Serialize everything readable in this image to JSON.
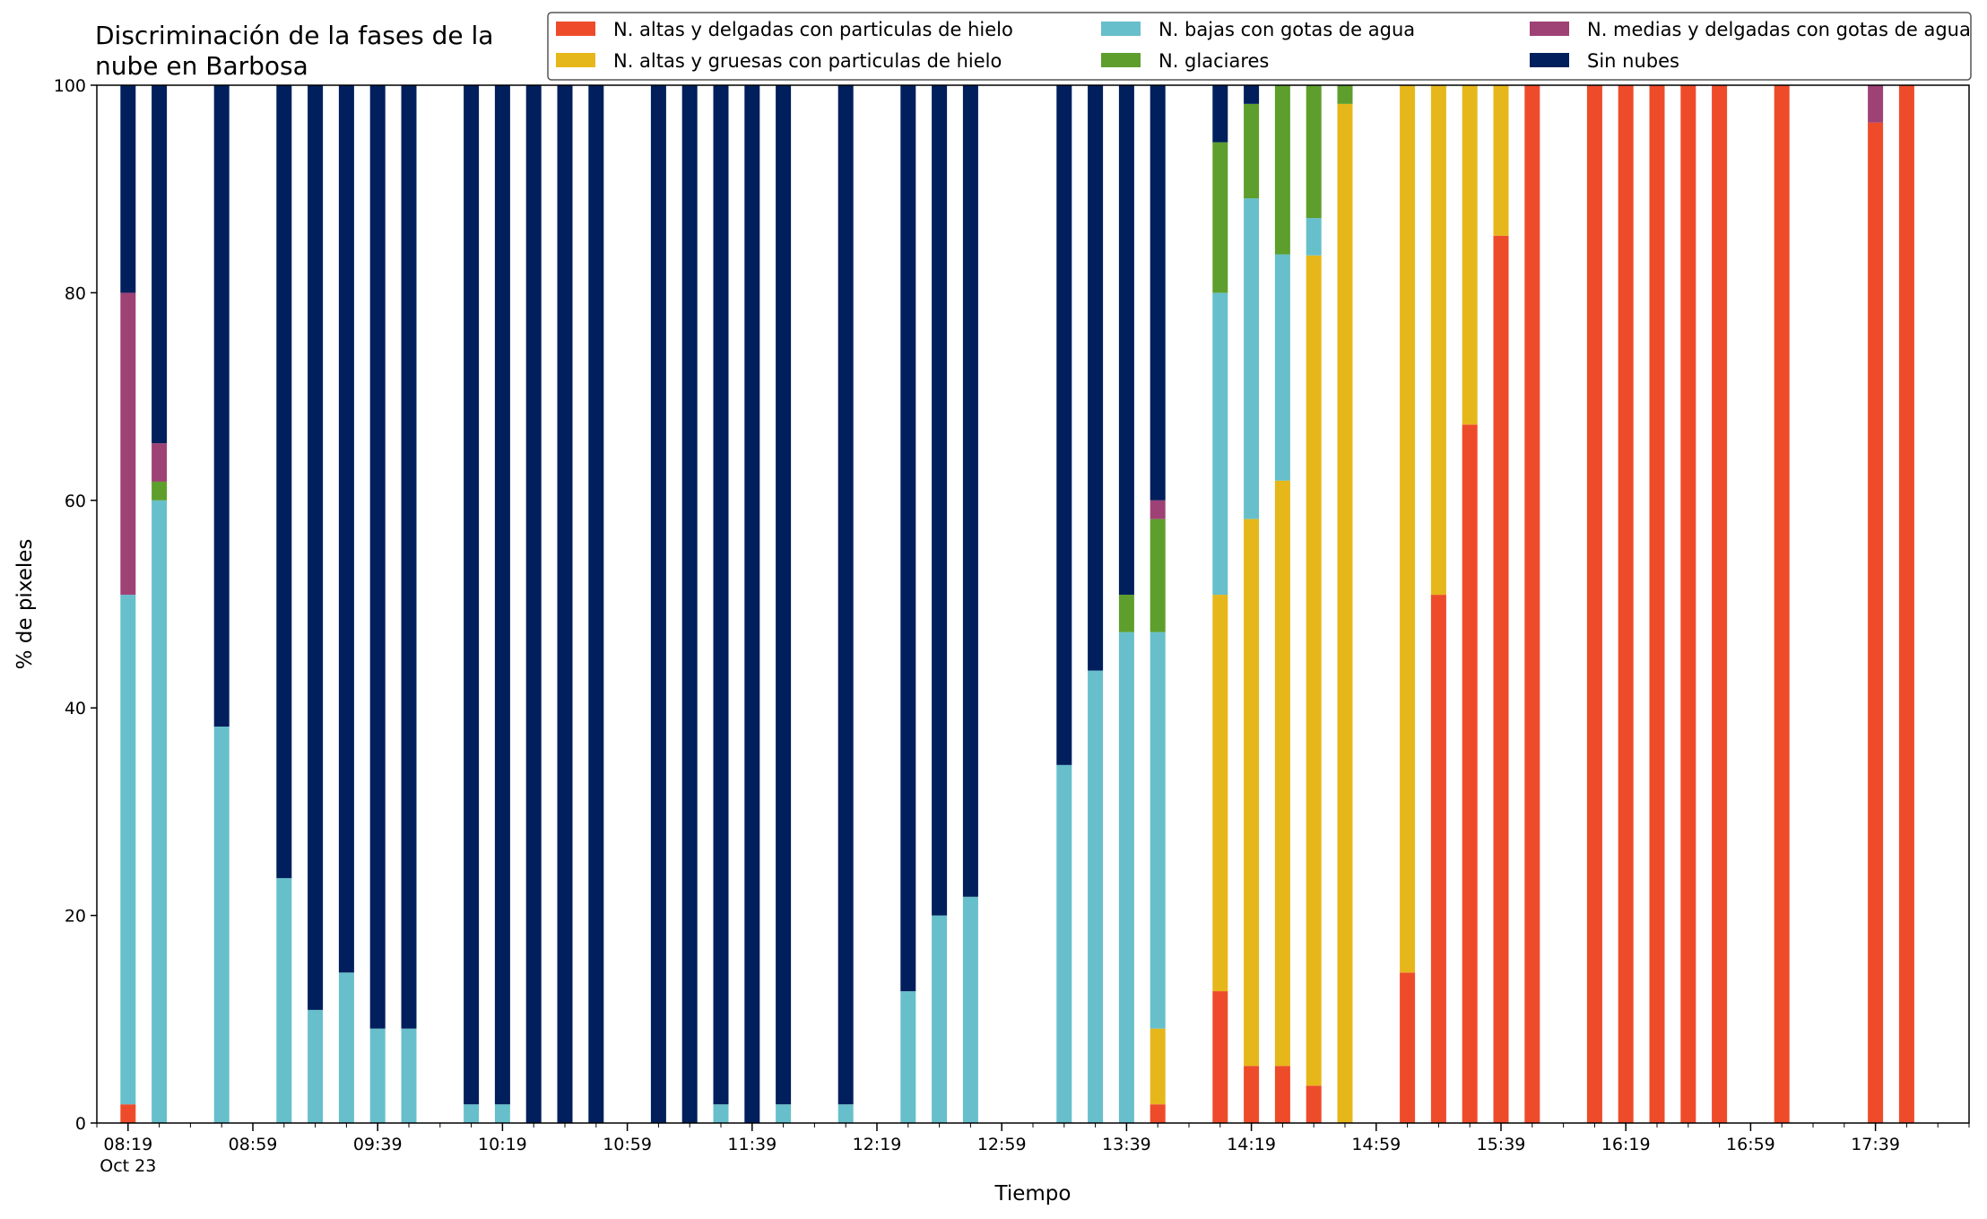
{
  "chart_data": {
    "type": "bar",
    "stacked": true,
    "title": "Discriminación de la fases de la nube en Barbosa",
    "title_lines": [
      "Discriminación de la fases de la",
      "nube en Barbosa"
    ],
    "xlabel": "Tiempo",
    "ylabel": "% de pixeles",
    "ylim": [
      0,
      100
    ],
    "yticks": [
      0,
      20,
      40,
      60,
      80,
      100
    ],
    "xlim": [
      "08:09",
      "18:09"
    ],
    "xticks": [
      {
        "time": "08:19",
        "label": "08:19",
        "sublabel": "Oct 23"
      },
      {
        "time": "08:59",
        "label": "08:59"
      },
      {
        "time": "09:39",
        "label": "09:39"
      },
      {
        "time": "10:19",
        "label": "10:19"
      },
      {
        "time": "10:59",
        "label": "10:59"
      },
      {
        "time": "11:39",
        "label": "11:39"
      },
      {
        "time": "12:19",
        "label": "12:19"
      },
      {
        "time": "12:59",
        "label": "12:59"
      },
      {
        "time": "13:39",
        "label": "13:39"
      },
      {
        "time": "14:19",
        "label": "14:19"
      },
      {
        "time": "14:59",
        "label": "14:59"
      },
      {
        "time": "15:39",
        "label": "15:39"
      },
      {
        "time": "16:19",
        "label": "16:19"
      },
      {
        "time": "16:59",
        "label": "16:59"
      },
      {
        "time": "17:39",
        "label": "17:39"
      }
    ],
    "grid": false,
    "legend_position": "top-right",
    "series": [
      {
        "key": "altas_delgadas",
        "name": "N. altas y delgadas con particulas de hielo",
        "color": "#ee4b2b"
      },
      {
        "key": "altas_gruesas",
        "name": "N. altas y gruesas con particulas de hielo",
        "color": "#e6b71a"
      },
      {
        "key": "bajas",
        "name": "N. bajas con gotas de agua",
        "color": "#67bfcb"
      },
      {
        "key": "glaciares",
        "name": "N. glaciares",
        "color": "#5e9e2c"
      },
      {
        "key": "medias",
        "name": "N. medias y delgadas con gotas de agua",
        "color": "#9e4275"
      },
      {
        "key": "sin_nubes",
        "name": "Sin nubes",
        "color": "#001f5c"
      }
    ],
    "stack_order": [
      "altas_delgadas",
      "altas_gruesas",
      "bajas",
      "glaciares",
      "medias",
      "sin_nubes"
    ],
    "bars": [
      {
        "time": "08:19",
        "altas_delgadas": 1.8,
        "altas_gruesas": 0,
        "bajas": 49.1,
        "glaciares": 0,
        "medias": 29.1,
        "sin_nubes": 20.0
      },
      {
        "time": "08:29",
        "altas_delgadas": 0,
        "altas_gruesas": 0,
        "bajas": 60.0,
        "glaciares": 1.8,
        "medias": 3.7,
        "sin_nubes": 34.5
      },
      {
        "time": "08:49",
        "altas_delgadas": 0,
        "altas_gruesas": 0,
        "bajas": 38.2,
        "glaciares": 0,
        "medias": 0,
        "sin_nubes": 61.8
      },
      {
        "time": "09:09",
        "altas_delgadas": 0,
        "altas_gruesas": 0,
        "bajas": 23.6,
        "glaciares": 0,
        "medias": 0,
        "sin_nubes": 76.4
      },
      {
        "time": "09:19",
        "altas_delgadas": 0,
        "altas_gruesas": 0,
        "bajas": 10.9,
        "glaciares": 0,
        "medias": 0,
        "sin_nubes": 89.1
      },
      {
        "time": "09:29",
        "altas_delgadas": 0,
        "altas_gruesas": 0,
        "bajas": 14.5,
        "glaciares": 0,
        "medias": 0,
        "sin_nubes": 85.5
      },
      {
        "time": "09:39",
        "altas_delgadas": 0,
        "altas_gruesas": 0,
        "bajas": 9.1,
        "glaciares": 0,
        "medias": 0,
        "sin_nubes": 90.9
      },
      {
        "time": "09:49",
        "altas_delgadas": 0,
        "altas_gruesas": 0,
        "bajas": 9.1,
        "glaciares": 0,
        "medias": 0,
        "sin_nubes": 90.9
      },
      {
        "time": "10:09",
        "altas_delgadas": 0,
        "altas_gruesas": 0,
        "bajas": 1.8,
        "glaciares": 0,
        "medias": 0,
        "sin_nubes": 98.2
      },
      {
        "time": "10:19",
        "altas_delgadas": 0,
        "altas_gruesas": 0,
        "bajas": 1.8,
        "glaciares": 0,
        "medias": 0,
        "sin_nubes": 98.2
      },
      {
        "time": "10:29",
        "altas_delgadas": 0,
        "altas_gruesas": 0,
        "bajas": 0,
        "glaciares": 0,
        "medias": 0,
        "sin_nubes": 100
      },
      {
        "time": "10:39",
        "altas_delgadas": 0,
        "altas_gruesas": 0,
        "bajas": 0,
        "glaciares": 0,
        "medias": 0,
        "sin_nubes": 100
      },
      {
        "time": "10:49",
        "altas_delgadas": 0,
        "altas_gruesas": 0,
        "bajas": 0,
        "glaciares": 0,
        "medias": 0,
        "sin_nubes": 100
      },
      {
        "time": "11:09",
        "altas_delgadas": 0,
        "altas_gruesas": 0,
        "bajas": 0,
        "glaciares": 0,
        "medias": 0,
        "sin_nubes": 100
      },
      {
        "time": "11:19",
        "altas_delgadas": 0,
        "altas_gruesas": 0,
        "bajas": 0,
        "glaciares": 0,
        "medias": 0,
        "sin_nubes": 100
      },
      {
        "time": "11:29",
        "altas_delgadas": 0,
        "altas_gruesas": 0,
        "bajas": 1.8,
        "glaciares": 0,
        "medias": 0,
        "sin_nubes": 98.2
      },
      {
        "time": "11:39",
        "altas_delgadas": 0,
        "altas_gruesas": 0,
        "bajas": 0,
        "glaciares": 0,
        "medias": 0,
        "sin_nubes": 100
      },
      {
        "time": "11:49",
        "altas_delgadas": 0,
        "altas_gruesas": 0,
        "bajas": 1.8,
        "glaciares": 0,
        "medias": 0,
        "sin_nubes": 98.2
      },
      {
        "time": "12:09",
        "altas_delgadas": 0,
        "altas_gruesas": 0,
        "bajas": 1.8,
        "glaciares": 0,
        "medias": 0,
        "sin_nubes": 98.2
      },
      {
        "time": "12:29",
        "altas_delgadas": 0,
        "altas_gruesas": 0,
        "bajas": 12.7,
        "glaciares": 0,
        "medias": 0,
        "sin_nubes": 87.3
      },
      {
        "time": "12:39",
        "altas_delgadas": 0,
        "altas_gruesas": 0,
        "bajas": 20.0,
        "glaciares": 0,
        "medias": 0,
        "sin_nubes": 80.0
      },
      {
        "time": "12:49",
        "altas_delgadas": 0,
        "altas_gruesas": 0,
        "bajas": 21.8,
        "glaciares": 0,
        "medias": 0,
        "sin_nubes": 78.2
      },
      {
        "time": "13:19",
        "altas_delgadas": 0,
        "altas_gruesas": 0,
        "bajas": 34.5,
        "glaciares": 0,
        "medias": 0,
        "sin_nubes": 65.5
      },
      {
        "time": "13:29",
        "altas_delgadas": 0,
        "altas_gruesas": 0,
        "bajas": 43.6,
        "glaciares": 0,
        "medias": 0,
        "sin_nubes": 56.4
      },
      {
        "time": "13:39",
        "altas_delgadas": 0,
        "altas_gruesas": 0,
        "bajas": 47.3,
        "glaciares": 3.6,
        "medias": 0,
        "sin_nubes": 49.1
      },
      {
        "time": "13:49",
        "altas_delgadas": 1.8,
        "altas_gruesas": 7.3,
        "bajas": 38.2,
        "glaciares": 10.9,
        "medias": 1.8,
        "sin_nubes": 40.0
      },
      {
        "time": "14:09",
        "altas_delgadas": 12.7,
        "altas_gruesas": 38.2,
        "bajas": 29.1,
        "glaciares": 14.5,
        "medias": 0,
        "sin_nubes": 5.5
      },
      {
        "time": "14:19",
        "altas_delgadas": 5.5,
        "altas_gruesas": 52.7,
        "bajas": 30.9,
        "glaciares": 9.1,
        "medias": 0,
        "sin_nubes": 1.8
      },
      {
        "time": "14:29",
        "altas_delgadas": 5.5,
        "altas_gruesas": 56.4,
        "bajas": 21.8,
        "glaciares": 16.3,
        "medias": 0,
        "sin_nubes": 0
      },
      {
        "time": "14:39",
        "altas_delgadas": 3.6,
        "altas_gruesas": 80.0,
        "bajas": 3.6,
        "glaciares": 12.8,
        "medias": 0,
        "sin_nubes": 0
      },
      {
        "time": "14:49",
        "altas_delgadas": 0,
        "altas_gruesas": 98.2,
        "bajas": 0,
        "glaciares": 1.8,
        "medias": 0,
        "sin_nubes": 0
      },
      {
        "time": "15:09",
        "altas_delgadas": 14.5,
        "altas_gruesas": 85.5,
        "bajas": 0,
        "glaciares": 0,
        "medias": 0,
        "sin_nubes": 0
      },
      {
        "time": "15:19",
        "altas_delgadas": 50.9,
        "altas_gruesas": 49.1,
        "bajas": 0,
        "glaciares": 0,
        "medias": 0,
        "sin_nubes": 0
      },
      {
        "time": "15:29",
        "altas_delgadas": 67.3,
        "altas_gruesas": 32.7,
        "bajas": 0,
        "glaciares": 0,
        "medias": 0,
        "sin_nubes": 0
      },
      {
        "time": "15:39",
        "altas_delgadas": 85.5,
        "altas_gruesas": 14.5,
        "bajas": 0,
        "glaciares": 0,
        "medias": 0,
        "sin_nubes": 0
      },
      {
        "time": "15:49",
        "altas_delgadas": 100,
        "altas_gruesas": 0,
        "bajas": 0,
        "glaciares": 0,
        "medias": 0,
        "sin_nubes": 0
      },
      {
        "time": "16:09",
        "altas_delgadas": 100,
        "altas_gruesas": 0,
        "bajas": 0,
        "glaciares": 0,
        "medias": 0,
        "sin_nubes": 0
      },
      {
        "time": "16:19",
        "altas_delgadas": 100,
        "altas_gruesas": 0,
        "bajas": 0,
        "glaciares": 0,
        "medias": 0,
        "sin_nubes": 0
      },
      {
        "time": "16:29",
        "altas_delgadas": 100,
        "altas_gruesas": 0,
        "bajas": 0,
        "glaciares": 0,
        "medias": 0,
        "sin_nubes": 0
      },
      {
        "time": "16:39",
        "altas_delgadas": 100,
        "altas_gruesas": 0,
        "bajas": 0,
        "glaciares": 0,
        "medias": 0,
        "sin_nubes": 0
      },
      {
        "time": "16:49",
        "altas_delgadas": 100,
        "altas_gruesas": 0,
        "bajas": 0,
        "glaciares": 0,
        "medias": 0,
        "sin_nubes": 0
      },
      {
        "time": "17:09",
        "altas_delgadas": 100,
        "altas_gruesas": 0,
        "bajas": 0,
        "glaciares": 0,
        "medias": 0,
        "sin_nubes": 0
      },
      {
        "time": "17:39",
        "altas_delgadas": 96.4,
        "altas_gruesas": 0,
        "bajas": 0,
        "glaciares": 0,
        "medias": 3.6,
        "sin_nubes": 0
      },
      {
        "time": "17:49",
        "altas_delgadas": 100,
        "altas_gruesas": 0,
        "bajas": 0,
        "glaciares": 0,
        "medias": 0,
        "sin_nubes": 0
      }
    ]
  }
}
